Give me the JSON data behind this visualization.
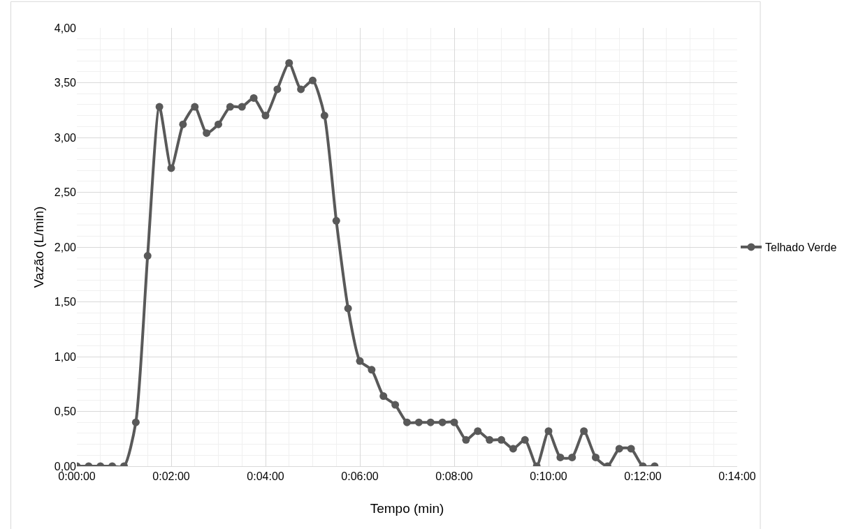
{
  "chart_data": {
    "type": "line",
    "xlabel": "Tempo (min)",
    "ylabel": "Vazão (L/min)",
    "x": [
      0,
      0.25,
      0.5,
      0.75,
      1,
      1.25,
      1.5,
      1.75,
      2,
      2.25,
      2.5,
      2.75,
      3,
      3.25,
      3.5,
      3.75,
      4,
      4.25,
      4.5,
      4.75,
      5,
      5.25,
      5.5,
      5.75,
      6,
      6.25,
      6.5,
      6.75,
      7,
      7.25,
      7.5,
      7.75,
      8,
      8.25,
      8.5,
      8.75,
      9,
      9.25,
      9.5,
      9.75,
      10,
      10.25,
      10.5,
      10.75,
      11,
      11.25,
      11.5,
      11.75,
      12,
      12.25
    ],
    "series": [
      {
        "name": "Telhado Verde",
        "color": "#595959",
        "values": [
          0,
          0,
          0,
          0,
          0,
          0.4,
          1.92,
          3.28,
          2.72,
          3.12,
          3.28,
          3.04,
          3.12,
          3.28,
          3.28,
          3.36,
          3.2,
          3.44,
          3.68,
          3.44,
          3.52,
          3.2,
          2.24,
          1.44,
          0.96,
          0.88,
          0.64,
          0.56,
          0.4,
          0.4,
          0.4,
          0.4,
          0.4,
          0.24,
          0.32,
          0.24,
          0.24,
          0.16,
          0.24,
          0,
          0.32,
          0.08,
          0.08,
          0.32,
          0.08,
          0,
          0.16,
          0.16,
          0,
          0
        ]
      }
    ],
    "xlim": [
      0,
      14
    ],
    "xticks": [
      {
        "value": 0,
        "label": "0:00:00"
      },
      {
        "value": 2,
        "label": "0:02:00"
      },
      {
        "value": 4,
        "label": "0:04:00"
      },
      {
        "value": 6,
        "label": "0:06:00"
      },
      {
        "value": 8,
        "label": "0:08:00"
      },
      {
        "value": 10,
        "label": "0:10:00"
      },
      {
        "value": 12,
        "label": "0:12:00"
      },
      {
        "value": 14,
        "label": "0:14:00"
      }
    ],
    "ylim": [
      0,
      4
    ],
    "yticks": [
      {
        "value": 0,
        "label": "0,00"
      },
      {
        "value": 0.5,
        "label": "0,50"
      },
      {
        "value": 1,
        "label": "1,00"
      },
      {
        "value": 1.5,
        "label": "1,50"
      },
      {
        "value": 2,
        "label": "2,00"
      },
      {
        "value": 2.5,
        "label": "2,50"
      },
      {
        "value": 3,
        "label": "3,00"
      },
      {
        "value": 3.5,
        "label": "3,50"
      },
      {
        "value": 4,
        "label": "4,00"
      }
    ],
    "grid": true,
    "legend": "right",
    "marker": "circle",
    "line_style": "solid"
  }
}
